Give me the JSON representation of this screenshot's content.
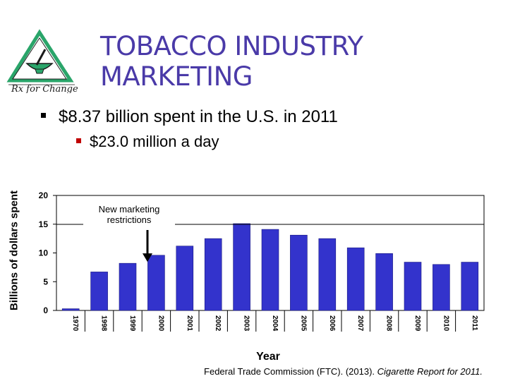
{
  "slide": {
    "title_lines": [
      "TOBACCO INDUSTRY",
      "MARKETING"
    ],
    "bullets": {
      "main": "$8.37 billion spent in the U.S. in 2011",
      "sub": "$23.0 million a day"
    },
    "logo": {
      "text": "Rx for Change",
      "colors": {
        "green": "#2aa56a",
        "outline": "#1a1a1a"
      }
    },
    "source": {
      "prefix": "Federal Trade Commission (FTC). (2013). ",
      "italic": "Cigarette Report for 2011."
    }
  },
  "chart_data": {
    "type": "bar",
    "categories": [
      "1970",
      "1998",
      "1999",
      "2000",
      "2001",
      "2002",
      "2003",
      "2004",
      "2005",
      "2006",
      "2007",
      "2008",
      "2009",
      "2010",
      "2011"
    ],
    "values": [
      0.3,
      6.7,
      8.2,
      9.6,
      11.2,
      12.5,
      15.1,
      14.1,
      13.1,
      12.5,
      10.9,
      9.9,
      8.4,
      8.0,
      8.4
    ],
    "ylabel": "Billions of dollars spent",
    "xlabel": "Year",
    "yticks": [
      0,
      5,
      10,
      15,
      20
    ],
    "ylim": [
      0,
      20
    ],
    "grid": false,
    "bar_color": "#3333cc",
    "annotation": {
      "text_lines": [
        "New marketing",
        "restrictions"
      ],
      "target_category": "1999"
    }
  }
}
